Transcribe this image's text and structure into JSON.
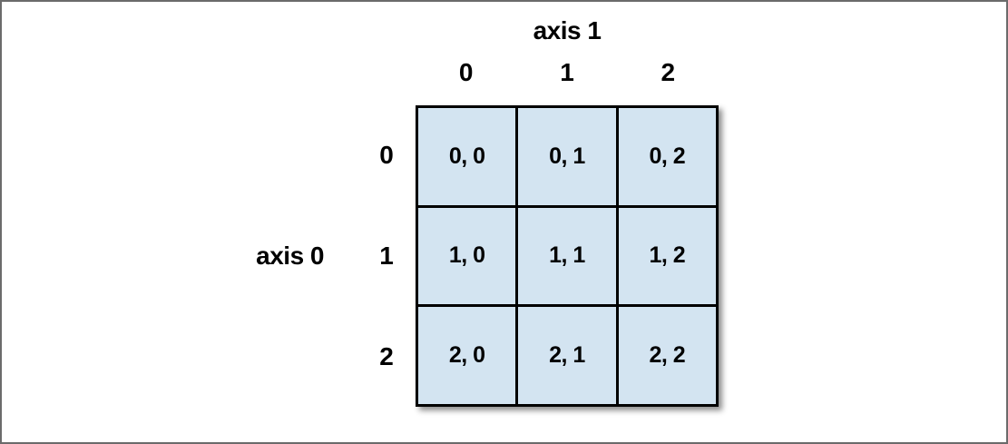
{
  "diagram": {
    "title_top": "axis 1",
    "title_left": "axis 0",
    "column_labels": [
      "0",
      "1",
      "2"
    ],
    "row_labels": [
      "0",
      "1",
      "2"
    ],
    "cells": [
      [
        "0, 0",
        "0, 1",
        "0, 2"
      ],
      [
        "1, 0",
        "1, 1",
        "1, 2"
      ],
      [
        "2, 0",
        "2, 1",
        "2, 2"
      ]
    ],
    "colors": {
      "cell_fill": "#d3e4f1",
      "grid_line": "#000000",
      "frame_border": "#6b6b6b",
      "text": "#000000"
    }
  }
}
